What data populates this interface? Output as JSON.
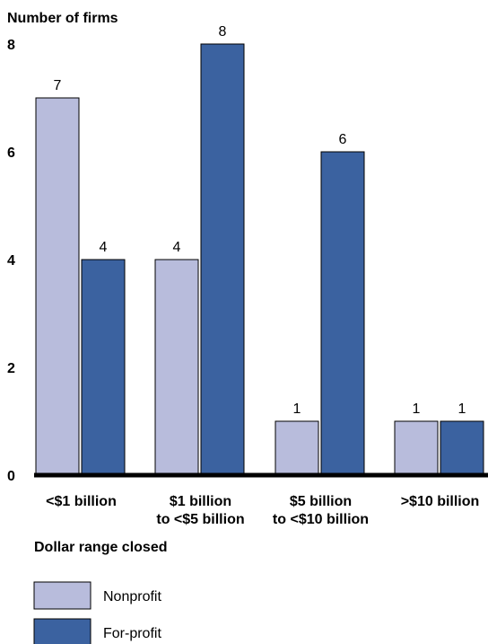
{
  "chart_data": {
    "type": "bar",
    "title": "",
    "ylabel": "Number of firms",
    "xlabel": "Dollar range closed",
    "ylim": [
      0,
      8
    ],
    "yticks": [
      0,
      2,
      4,
      6,
      8
    ],
    "grid": false,
    "legend_position": "bottom-left",
    "categories": [
      [
        "<$1 billion"
      ],
      [
        "$1 billion",
        "to <$5 billion"
      ],
      [
        "$5 billion",
        "to <$10 billion"
      ],
      [
        ">$10 billion"
      ]
    ],
    "series": [
      {
        "name": "Nonprofit",
        "color": "#b8bcdc",
        "values": [
          7,
          4,
          1,
          1
        ]
      },
      {
        "name": "For-profit",
        "color": "#3b62a0",
        "values": [
          4,
          8,
          6,
          1
        ]
      }
    ]
  }
}
